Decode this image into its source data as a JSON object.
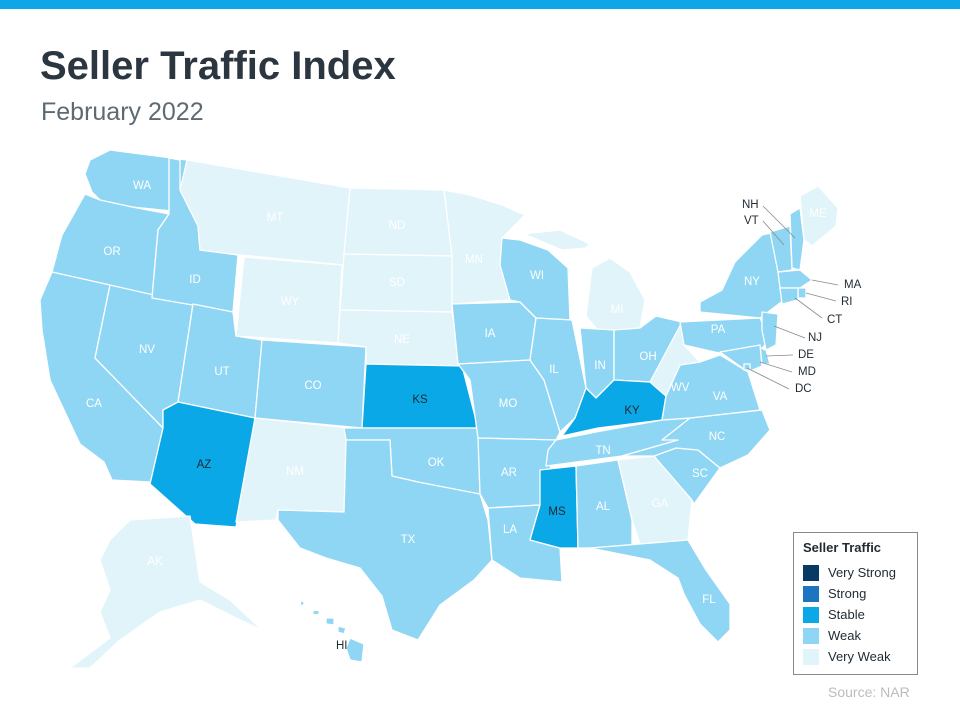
{
  "title": "Seller Traffic Index",
  "subtitle": "February 2022",
  "source": "Source: NAR",
  "legend": {
    "title": "Seller Traffic",
    "items": [
      {
        "label": "Very Strong",
        "color": "#083b63"
      },
      {
        "label": "Strong",
        "color": "#1c75c0"
      },
      {
        "label": "Stable",
        "color": "#0aa8e6"
      },
      {
        "label": "Weak",
        "color": "#8fd6f4"
      },
      {
        "label": "Very Weak",
        "color": "#e1f4fa"
      }
    ]
  },
  "states": [
    {
      "code": "WA",
      "category": "Weak"
    },
    {
      "code": "OR",
      "category": "Weak"
    },
    {
      "code": "CA",
      "category": "Weak"
    },
    {
      "code": "NV",
      "category": "Weak"
    },
    {
      "code": "ID",
      "category": "Weak"
    },
    {
      "code": "MT",
      "category": "Very Weak"
    },
    {
      "code": "WY",
      "category": "Very Weak"
    },
    {
      "code": "UT",
      "category": "Weak"
    },
    {
      "code": "AZ",
      "category": "Stable"
    },
    {
      "code": "CO",
      "category": "Weak"
    },
    {
      "code": "NM",
      "category": "Very Weak"
    },
    {
      "code": "ND",
      "category": "Very Weak"
    },
    {
      "code": "SD",
      "category": "Very Weak"
    },
    {
      "code": "NE",
      "category": "Very Weak"
    },
    {
      "code": "KS",
      "category": "Stable"
    },
    {
      "code": "OK",
      "category": "Weak"
    },
    {
      "code": "TX",
      "category": "Weak"
    },
    {
      "code": "MN",
      "category": "Very Weak"
    },
    {
      "code": "IA",
      "category": "Weak"
    },
    {
      "code": "MO",
      "category": "Weak"
    },
    {
      "code": "AR",
      "category": "Weak"
    },
    {
      "code": "LA",
      "category": "Weak"
    },
    {
      "code": "WI",
      "category": "Weak"
    },
    {
      "code": "IL",
      "category": "Weak"
    },
    {
      "code": "MI",
      "category": "Very Weak"
    },
    {
      "code": "IN",
      "category": "Weak"
    },
    {
      "code": "OH",
      "category": "Weak"
    },
    {
      "code": "KY",
      "category": "Stable"
    },
    {
      "code": "TN",
      "category": "Weak"
    },
    {
      "code": "MS",
      "category": "Stable"
    },
    {
      "code": "AL",
      "category": "Weak"
    },
    {
      "code": "GA",
      "category": "Very Weak"
    },
    {
      "code": "FL",
      "category": "Weak"
    },
    {
      "code": "SC",
      "category": "Weak"
    },
    {
      "code": "NC",
      "category": "Weak"
    },
    {
      "code": "VA",
      "category": "Weak"
    },
    {
      "code": "WV",
      "category": "Very Weak"
    },
    {
      "code": "PA",
      "category": "Weak"
    },
    {
      "code": "NY",
      "category": "Weak"
    },
    {
      "code": "ME",
      "category": "Very Weak"
    },
    {
      "code": "NH",
      "category": "Weak"
    },
    {
      "code": "VT",
      "category": "Weak"
    },
    {
      "code": "MA",
      "category": "Weak"
    },
    {
      "code": "RI",
      "category": "Weak"
    },
    {
      "code": "CT",
      "category": "Weak"
    },
    {
      "code": "NJ",
      "category": "Weak"
    },
    {
      "code": "DE",
      "category": "Weak"
    },
    {
      "code": "MD",
      "category": "Weak"
    },
    {
      "code": "DC",
      "category": "Weak"
    },
    {
      "code": "AK",
      "category": "Very Weak"
    },
    {
      "code": "HI",
      "category": "Weak"
    }
  ]
}
